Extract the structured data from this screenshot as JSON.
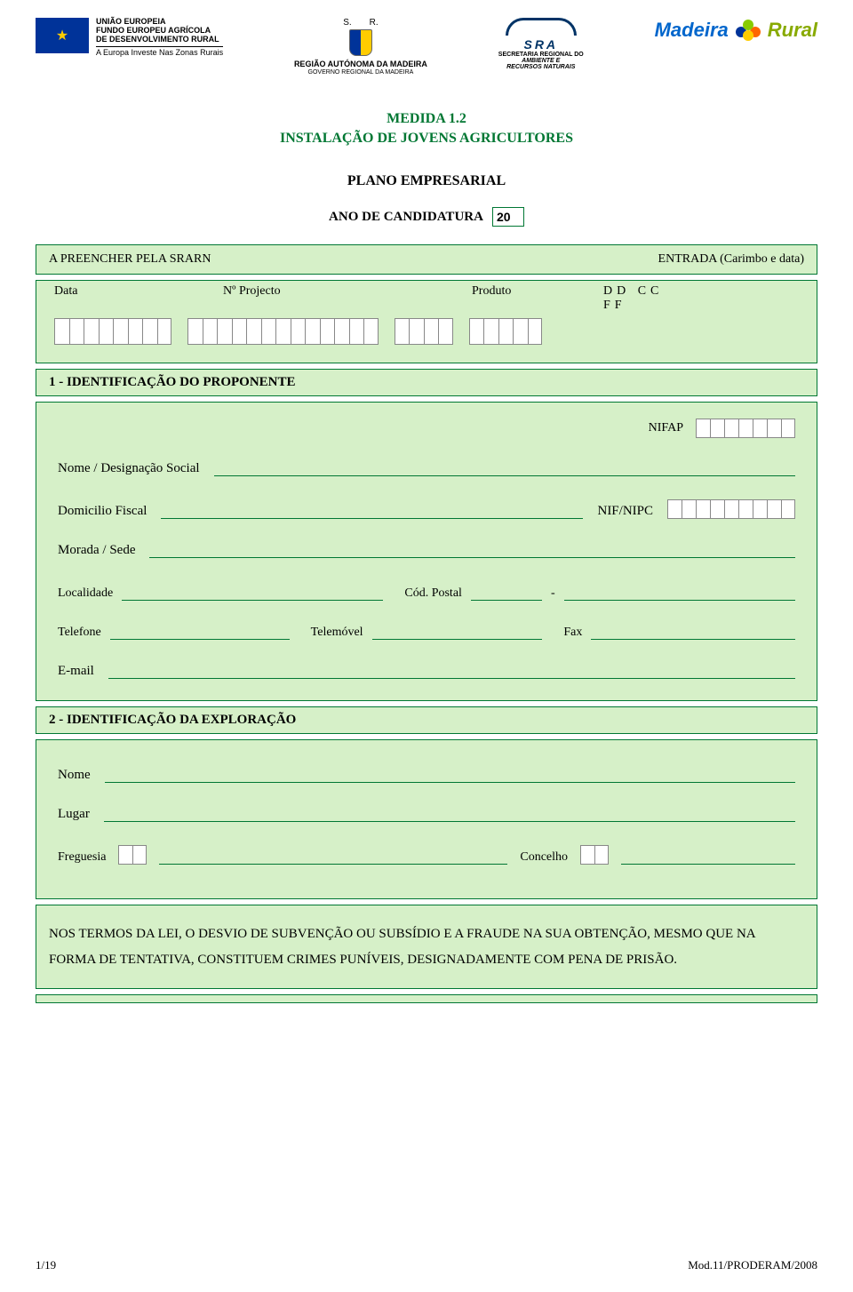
{
  "colors": {
    "green_border": "#007733",
    "green_bg": "#d6f0c8",
    "text": "#000000",
    "title_green": "#007733"
  },
  "header": {
    "eu": {
      "line1": "UNIÃO EUROPEIA",
      "line2": "FUNDO EUROPEU AGRÍCOLA",
      "line3": "DE DESENVOLVIMENTO RURAL",
      "line4": "A Europa Investe Nas Zonas Rurais"
    },
    "ram": {
      "s": "S.",
      "r": "R.",
      "title": "REGIÃO AUTÓNOMA DA MADEIRA",
      "sub": "GOVERNO REGIONAL DA MADEIRA"
    },
    "sra": {
      "title": "SRA",
      "sub1": "SECRETARIA REGIONAL DO",
      "sub2": "AMBIENTE E",
      "sub3": "RECURSOS NATURAIS"
    },
    "madeira": {
      "m": "Madeira",
      "r": "Rural"
    }
  },
  "titles": {
    "medida": "MEDIDA  1.2",
    "instalacao": "INSTALAÇÃO DE JOVENS AGRICULTORES",
    "plano": "PLANO EMPRESARIAL",
    "ano_label": "ANO DE CANDIDATURA",
    "ano_value": "20"
  },
  "preencher": {
    "left": "A PREENCHER PELA SRARN",
    "right": "ENTRADA  (Carimbo e data)"
  },
  "proj": {
    "data": "Data",
    "num": "Nº Projecto",
    "produto": "Produto",
    "ddccff": "DD  CC  FF"
  },
  "cell_counts": {
    "data": 8,
    "num_projecto": 13,
    "produto": 4,
    "ddccff": 5,
    "nifap": 7,
    "nifnipc": 9,
    "freguesia_code": 2,
    "concelho_code": 2
  },
  "section1": {
    "title": "1 -  IDENTIFICAÇÃO DO PROPONENTE",
    "nifap": "NIFAP",
    "nome": "Nome / Designação Social",
    "domicilio": "Domicilio Fiscal",
    "nifnipc": "NIF/NIPC",
    "morada": "Morada / Sede",
    "localidade": "Localidade",
    "cod_postal": "Cód. Postal",
    "dash": "-",
    "telefone": "Telefone",
    "telemovel": "Telemóvel",
    "fax": "Fax",
    "email": "E-mail"
  },
  "section2": {
    "title": "2 - IDENTIFICAÇÃO DA EXPLORAÇÃO",
    "nome": "Nome",
    "lugar": "Lugar",
    "freguesia": "Freguesia",
    "concelho": "Concelho"
  },
  "legal": "NOS TERMOS DA LEI, O DESVIO DE SUBVENÇÃO OU SUBSÍDIO E A FRAUDE NA SUA OBTENÇÃO, MESMO QUE NA FORMA DE TENTATIVA, CONSTITUEM CRIMES PUNÍVEIS, DESIGNADAMENTE COM PENA DE PRISÃO.",
  "footer": {
    "left": "1/19",
    "right": "Mod.11/PRODERAM/2008"
  }
}
